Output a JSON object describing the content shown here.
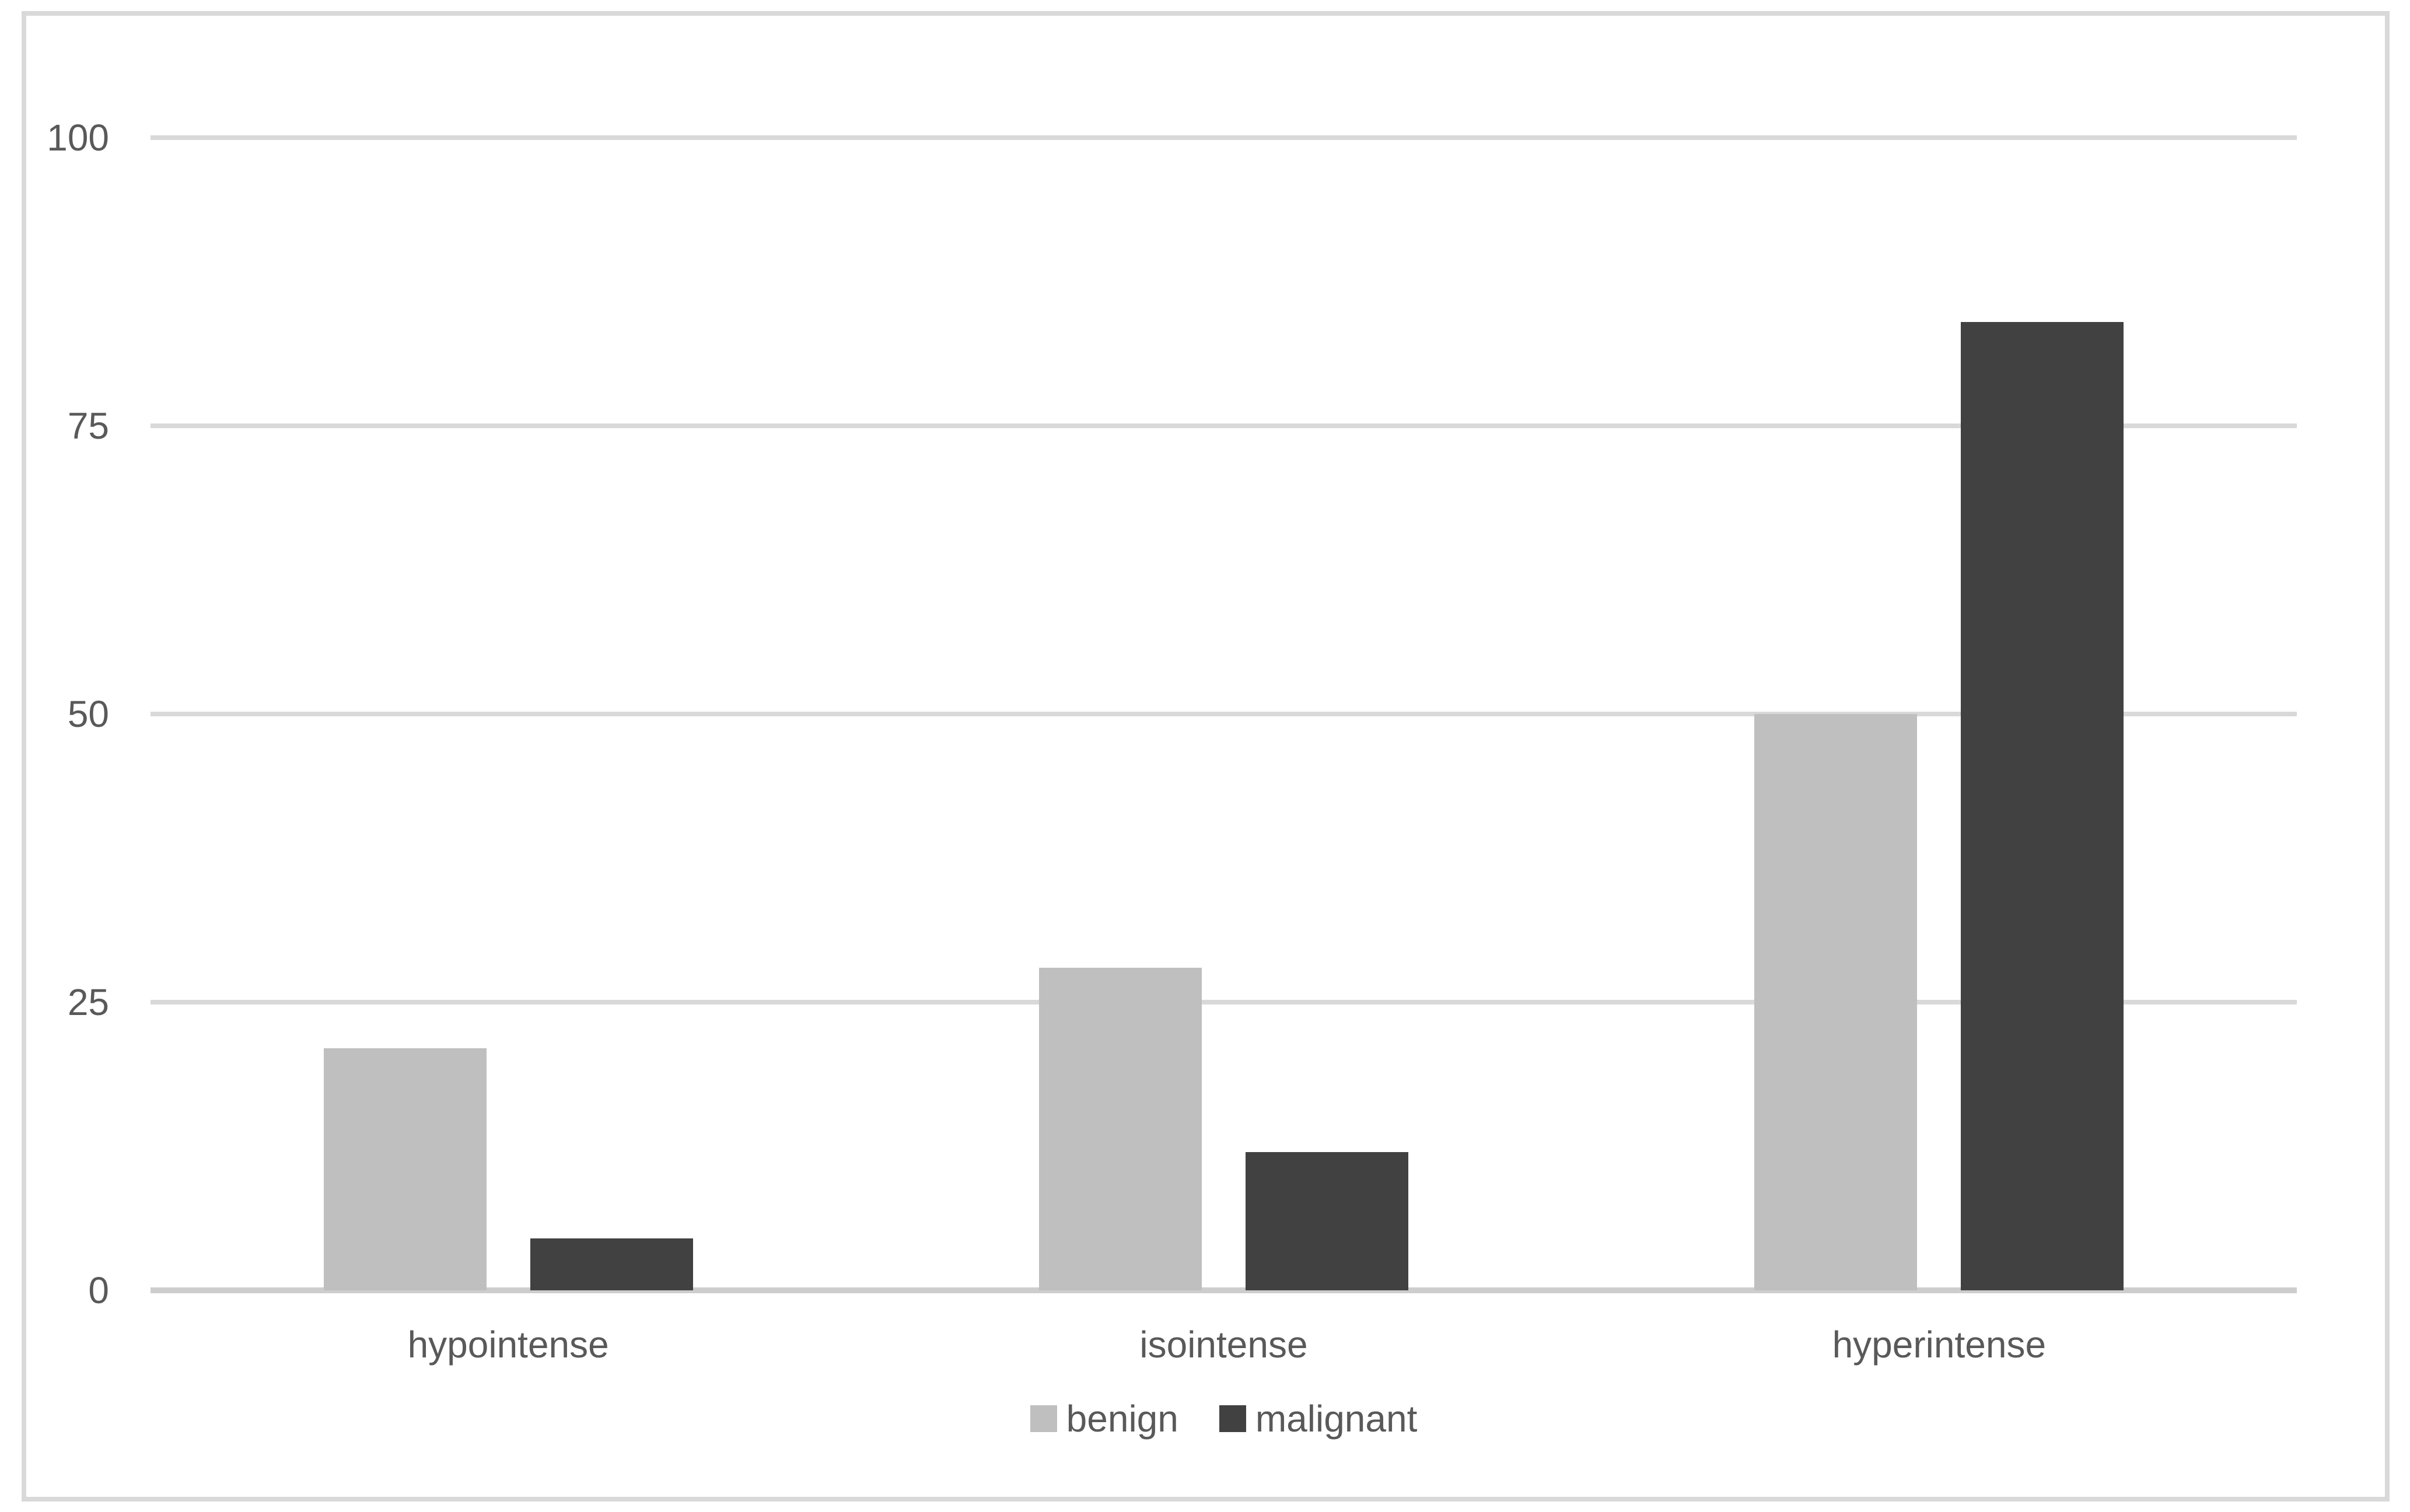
{
  "figure": {
    "background_color": "#ffffff",
    "border_color": "#d9d9d9"
  },
  "chart_data": {
    "type": "bar",
    "title": "",
    "xlabel": "",
    "ylabel": "",
    "categories": [
      "hypointense",
      "isointense",
      "hyperintense"
    ],
    "series": [
      {
        "name": "benign",
        "color": "#bfbfbf",
        "values": [
          21,
          28,
          50
        ]
      },
      {
        "name": "malignant",
        "color": "#414141",
        "values": [
          4.5,
          12,
          84
        ]
      }
    ],
    "ylim": [
      0,
      100
    ],
    "yticks": [
      0,
      25,
      50,
      75,
      100
    ],
    "grid": true,
    "gridline_color": "#d9d9d9",
    "axis_line_color": "#cdcdcd",
    "tick_label_color": "#595959",
    "legend_position": "bottom"
  },
  "legend": {
    "items": [
      {
        "label": "benign",
        "color": "#bfbfbf"
      },
      {
        "label": "malignant",
        "color": "#414141"
      }
    ]
  }
}
